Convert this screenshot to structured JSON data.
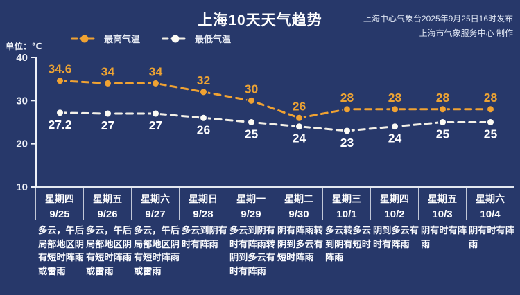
{
  "header": {
    "title": "上海10天天气趋势",
    "source_line1": "上海中心气象台2025年9月25日16时发布",
    "source_line2": "上海市气象服务中心 制作"
  },
  "unit_label": "单位：℃",
  "legend": {
    "high_label": "最高气温",
    "low_label": "最低气温"
  },
  "colors": {
    "background": "#27386a",
    "high": "#F0A232",
    "high_label": "#EDA333",
    "low": "#F3F0E7",
    "low_label": "#FFFFFF",
    "axis": "#EEF1F8"
  },
  "chart_data": {
    "type": "line",
    "title": "上海10天天气趋势",
    "ylabel": "单位：℃",
    "ylim": [
      10,
      40
    ],
    "yticks": [
      40,
      30,
      20,
      10
    ],
    "grid": false,
    "legend_position": "top-left",
    "categories": [
      "9/25",
      "9/26",
      "9/27",
      "9/28",
      "9/29",
      "9/30",
      "10/1",
      "10/2",
      "10/3",
      "10/4"
    ],
    "weekdays": [
      "星期四",
      "星期五",
      "星期六",
      "星期日",
      "星期一",
      "星期二",
      "星期三",
      "星期四",
      "星期五",
      "星期六"
    ],
    "series": [
      {
        "name": "最高气温",
        "color": "#F0A232",
        "values": [
          34.6,
          34,
          34,
          32,
          30,
          26,
          28,
          28,
          28,
          28
        ]
      },
      {
        "name": "最低气温",
        "color": "#F3F0E7",
        "values": [
          27.2,
          27,
          27,
          26,
          25,
          24,
          23,
          24,
          25,
          25
        ]
      }
    ],
    "forecast_text": [
      "多云，午后局部地区阴有短时阵雨或雷雨",
      "多云，午后局部地区阴有短时阵雨或雷雨",
      "多云，午后局部地区阴有短时阵雨或雷雨",
      "多云到阴有时有阵雨",
      "多云到阴有时有阵雨转阴到多云有时有阵雨",
      "阴有阵雨转阴到多云有短时阵雨",
      "多云转多云到阴有短时阵雨",
      "阴到多云有时有阵雨",
      "阴有时有阵雨",
      "阴有时有阵雨"
    ]
  }
}
